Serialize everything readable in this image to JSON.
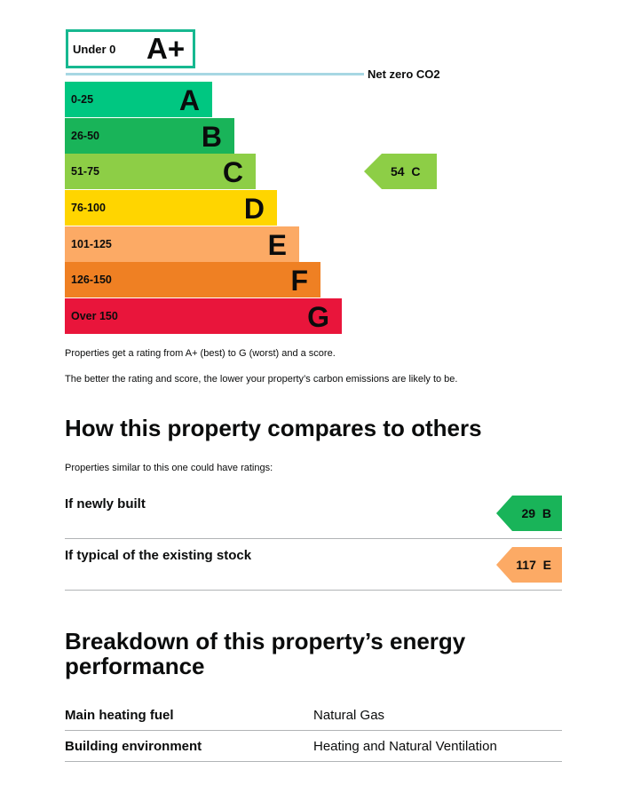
{
  "rating_scale": {
    "top": {
      "range": "Under 0",
      "letter": "A+",
      "color": "#17b890"
    },
    "net_zero_label": "Net zero CO2",
    "bands": [
      {
        "range": "0-25",
        "letter": "A",
        "color": "#00c781"
      },
      {
        "range": "26-50",
        "letter": "B",
        "color": "#19b459"
      },
      {
        "range": "51-75",
        "letter": "C",
        "color": "#8dce46"
      },
      {
        "range": "76-100",
        "letter": "D",
        "color": "#ffd500"
      },
      {
        "range": "101-125",
        "letter": "E",
        "color": "#fcaa65"
      },
      {
        "range": "126-150",
        "letter": "F",
        "color": "#ef8023"
      },
      {
        "range": "Over 150",
        "letter": "G",
        "color": "#e9153b"
      }
    ],
    "current_rating": {
      "score": "54",
      "letter": "C",
      "color": "#8dce46"
    }
  },
  "explanation": {
    "line1": "Properties get a rating from A+ (best) to G (worst) and a score.",
    "line2": "The better the rating and score, the lower your property’s carbon emissions are likely to be."
  },
  "comparison": {
    "heading": "How this property compares to others",
    "intro": "Properties similar to this one could have ratings:",
    "rows": [
      {
        "label": "If newly built",
        "score": "29",
        "letter": "B",
        "color": "#19b459"
      },
      {
        "label": "If typical of the existing stock",
        "score": "117",
        "letter": "E",
        "color": "#fcaa65"
      }
    ]
  },
  "breakdown": {
    "heading_line1": "Breakdown of this property’s energy",
    "heading_line2": "performance",
    "rows": [
      {
        "key": "Main heating fuel",
        "value": "Natural Gas"
      },
      {
        "key": "Building environment",
        "value": "Heating and Natural Ventilation"
      }
    ]
  }
}
